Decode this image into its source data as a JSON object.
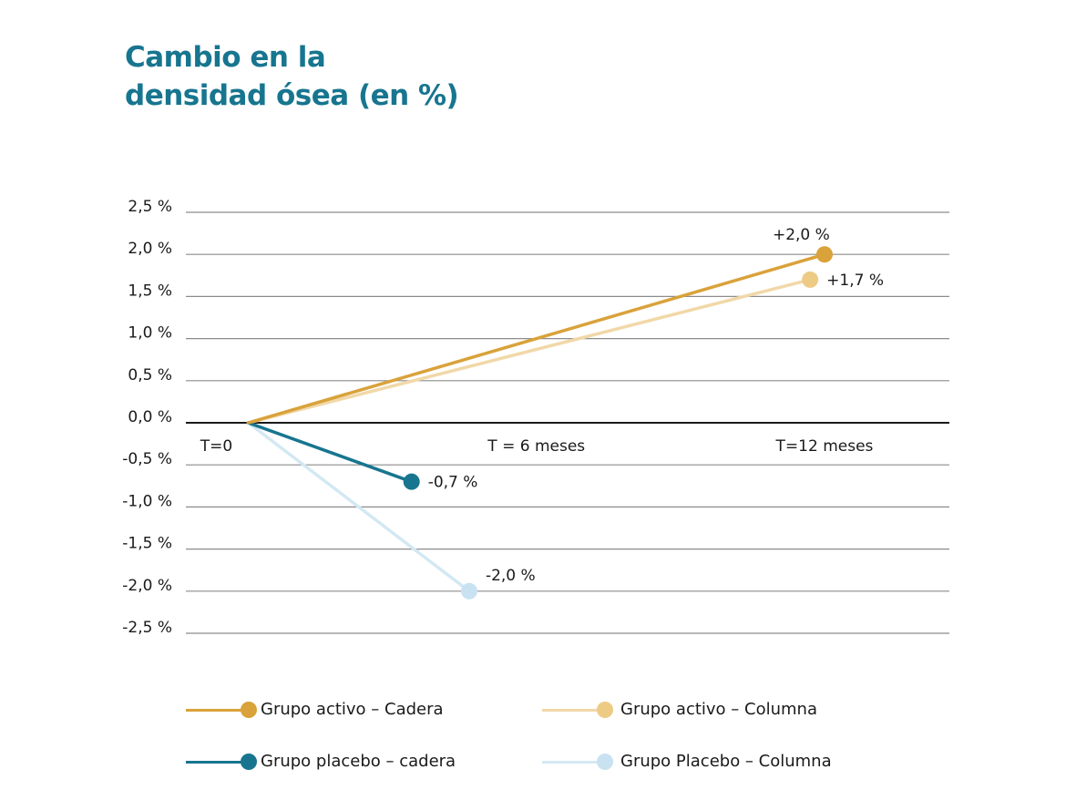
{
  "title_lines": [
    "Cambio en la",
    "densidad ósea (en %)"
  ],
  "chart_data": {
    "type": "line",
    "title": "Cambio en la densidad ósea (en %)",
    "xlabel": "",
    "ylabel": "",
    "categories": [
      "T=0",
      "T = 6 meses",
      "T=12 meses"
    ],
    "x_ticks": [
      {
        "label": "T=0",
        "x": 0
      },
      {
        "label": "T = 6 meses",
        "x": 6
      },
      {
        "label": "T=12 meses",
        "x": 12
      }
    ],
    "xlim": [
      -1.3,
      14.6
    ],
    "ylim": [
      -2.5,
      2.5
    ],
    "y_ticks": [
      2.5,
      2.0,
      1.5,
      1.0,
      0.5,
      0.0,
      -0.5,
      -1.0,
      -1.5,
      -2.0,
      -2.5
    ],
    "y_tick_labels": [
      "2,5 %",
      "2,0 %",
      "1,5 %",
      "1,0 %",
      "0,5 %",
      "0,0 %",
      "-0,5 %",
      "-1,0 %",
      "-1,5 %",
      "-2,0 %",
      "-2,5 %"
    ],
    "grid": true,
    "legend_position": "bottom",
    "series": [
      {
        "name": "Grupo activo – Cadera",
        "color": "#d9a23a",
        "points": [
          [
            0,
            0
          ],
          [
            12.0,
            2.0
          ]
        ],
        "end_label": "+2,0 %",
        "label_pos": "above"
      },
      {
        "name": "Grupo activo – Columna",
        "color": "#f1d8a8",
        "points": [
          [
            0,
            0
          ],
          [
            11.7,
            1.7
          ]
        ],
        "end_label": "+1,7 %",
        "label_pos": "right"
      },
      {
        "name": "Grupo placebo – cadera",
        "color": "#17758f",
        "points": [
          [
            0,
            0
          ],
          [
            3.4,
            -0.7
          ]
        ],
        "end_label": "-0,7 %",
        "label_pos": "right"
      },
      {
        "name": "Grupo Placebo – Columna",
        "color": "#d3e8f3",
        "points": [
          [
            0,
            0
          ],
          [
            4.6,
            -2.0
          ]
        ],
        "end_label": "-2,0 %",
        "label_pos": "above-right"
      }
    ]
  },
  "legend": [
    {
      "label": "Grupo activo – Cadera",
      "color": "#d9a23a",
      "dot": "#d9a23a"
    },
    {
      "label": "Grupo activo – Columna",
      "color": "#f1d8a8",
      "dot": "#eecb85"
    },
    {
      "label": "Grupo placebo – cadera",
      "color": "#17758f",
      "dot": "#17758f"
    },
    {
      "label": "Grupo Placebo – Columna",
      "color": "#d3e8f3",
      "dot": "#c8e2f1"
    }
  ]
}
